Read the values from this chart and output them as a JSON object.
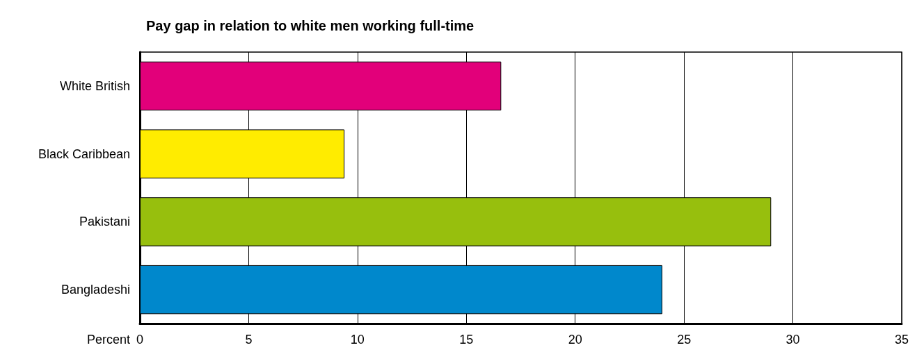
{
  "chart_data": {
    "type": "bar",
    "orientation": "horizontal",
    "title": "Pay gap in relation to white men working full-time",
    "xlabel": "Percent",
    "categories": [
      "White British",
      "Black Caribbean",
      "Pakistani",
      "Bangladeshi"
    ],
    "values": [
      16.6,
      9.4,
      29.0,
      24.0
    ],
    "colors": [
      "#e2007a",
      "#ffec00",
      "#97bf0d",
      "#0088cc"
    ],
    "xlim": [
      0,
      35
    ],
    "xticks": [
      0,
      5,
      10,
      15,
      20,
      25,
      30,
      35
    ],
    "grid": "x"
  }
}
